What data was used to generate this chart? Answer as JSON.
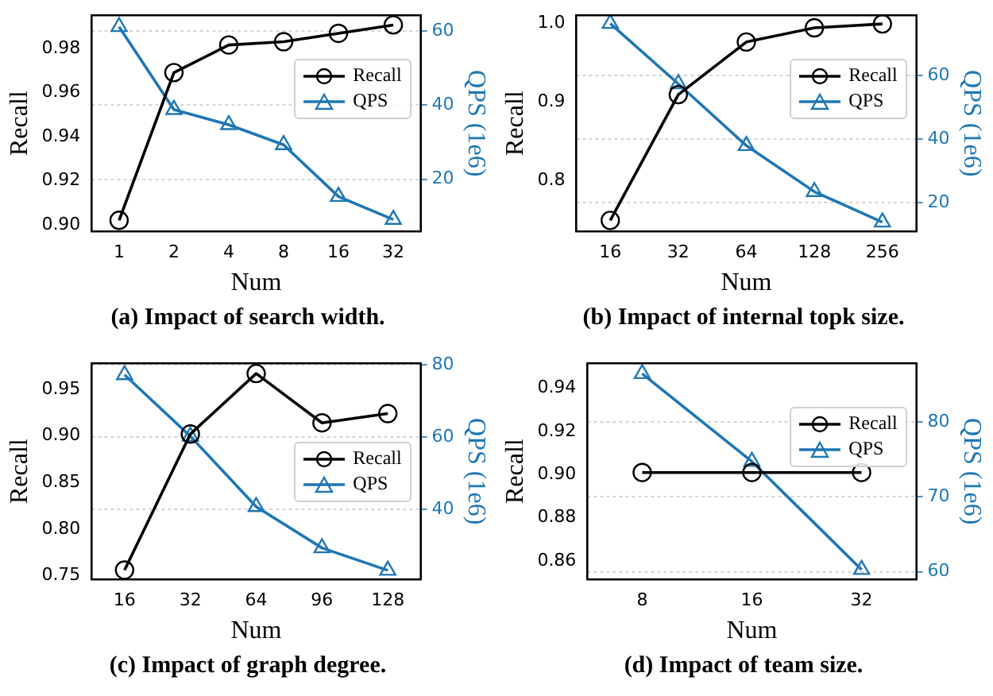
{
  "chart_data": [
    {
      "type": "line",
      "categories": [
        "1",
        "2",
        "4",
        "8",
        "16",
        "32"
      ],
      "xlabel": "Num",
      "ylabel": "Recall",
      "y2label": "QPS (1e6)",
      "ylim": [
        0.897,
        0.995
      ],
      "yticks": [
        {
          "value": 0.9,
          "label": "0.90"
        },
        0.92,
        0.94,
        0.96,
        0.98
      ],
      "y2lim": [
        5.9,
        64.3
      ],
      "y2ticks": [
        20,
        40,
        60
      ],
      "grid": "y2",
      "legend": "right",
      "annotations": [
        "(a) Impact of search width."
      ],
      "series": [
        {
          "name": "Recall",
          "color": "#000000",
          "marker": "circle",
          "values": [
            0.902,
            0.969,
            0.9815,
            0.983,
            0.9868,
            0.9906
          ]
        },
        {
          "name": "QPS",
          "color": "#1f77b4",
          "marker": "triangle",
          "axis": "y2",
          "values": [
            61.2,
            38.8,
            34.7,
            29.3,
            15.3,
            9.1
          ]
        }
      ]
    },
    {
      "type": "line",
      "categories": [
        "16",
        "32",
        "64",
        "128",
        "256"
      ],
      "xlabel": "Num",
      "ylabel": "Recall",
      "y2label": "QPS (1e6)",
      "ylim": [
        0.735,
        1.01
      ],
      "yticks": [
        {
          "value": 0.8,
          "label": "0.8"
        },
        {
          "value": 0.9,
          "label": "0.9"
        },
        {
          "value": 1,
          "label": "1.0"
        }
      ],
      "y2lim": [
        10.9,
        79
      ],
      "y2ticks": [
        20,
        40,
        60
      ],
      "grid": "y2",
      "legend": "right",
      "annotations": [
        "(b) Impact of internal topk size."
      ],
      "series": [
        {
          "name": "Recall",
          "color": "#000000",
          "marker": "circle",
          "values": [
            0.749,
            0.909,
            0.976,
            0.994,
            0.999
          ]
        },
        {
          "name": "QPS",
          "color": "#1f77b4",
          "marker": "triangle",
          "axis": "y2",
          "values": [
            76.4,
            57.4,
            37.9,
            23.4,
            13.8
          ]
        }
      ]
    },
    {
      "type": "line",
      "categories": [
        "16",
        "32",
        "64",
        "96",
        "128"
      ],
      "xlabel": "Num",
      "ylabel": "Recall",
      "y2label": "QPS (1e6)",
      "ylim": [
        0.746,
        0.978
      ],
      "yticks": [
        0.75,
        {
          "value": 0.8,
          "label": "0.80"
        },
        0.85,
        {
          "value": 0.9,
          "label": "0.90"
        },
        0.95
      ],
      "y2lim": [
        20.7,
        80.5
      ],
      "y2ticks": [
        40,
        60,
        80
      ],
      "grid": "y2",
      "legend": "center right",
      "annotations": [
        "(c) Impact of graph degree."
      ],
      "series": [
        {
          "name": "Recall",
          "color": "#000000",
          "marker": "circle",
          "values": [
            0.756,
            0.902,
            0.967,
            0.914,
            0.924
          ]
        },
        {
          "name": "QPS",
          "color": "#1f77b4",
          "marker": "triangle",
          "axis": "y2",
          "values": [
            77.3,
            60.3,
            40.8,
            29.4,
            23.2
          ]
        }
      ]
    },
    {
      "type": "line",
      "categories": [
        "8",
        "16",
        "32"
      ],
      "xlabel": "Num",
      "ylabel": "Recall",
      "y2label": "QPS (1e6)",
      "ylim": [
        0.8515,
        0.9516
      ],
      "yticks": [
        0.86,
        0.88,
        {
          "value": 0.9,
          "label": "0.90"
        },
        0.92,
        0.94
      ],
      "y2lim": [
        59,
        87.8
      ],
      "y2ticks": [
        60,
        70,
        80
      ],
      "grid": "y2",
      "legend": "right",
      "annotations": [
        "(d) Impact of team size."
      ],
      "series": [
        {
          "name": "Recall",
          "color": "#000000",
          "marker": "circle",
          "values": [
            0.901,
            0.901,
            0.901
          ]
        },
        {
          "name": "QPS",
          "color": "#1f77b4",
          "marker": "triangle",
          "axis": "y2",
          "values": [
            86.4,
            74.7,
            60.3
          ]
        }
      ]
    }
  ]
}
